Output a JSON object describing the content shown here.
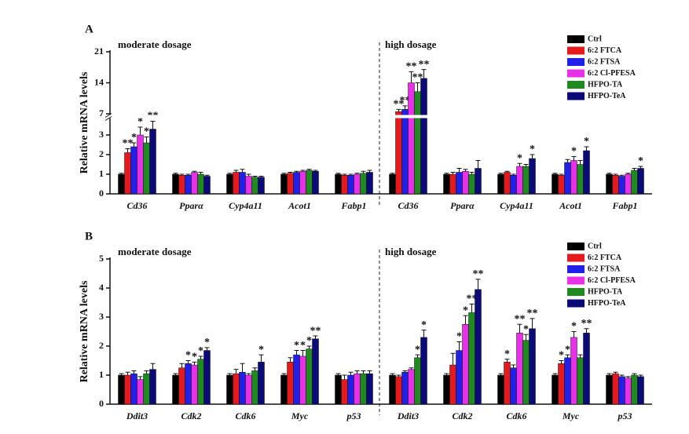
{
  "chart_data": [
    {
      "type": "bar",
      "panel_label": "A",
      "ylabel": "Relative mRNA levels",
      "annotations": [
        "moderate dosage",
        "high dosage"
      ],
      "categories": [
        "Cd36",
        "Pparα",
        "Cyp4a11",
        "Acot1",
        "Fabp1",
        "Cd36",
        "Pparα",
        "Cyp4a11",
        "Acot1",
        "Fabp1"
      ],
      "ylim": [
        0,
        21
      ],
      "yticks": [
        0,
        1,
        2,
        3,
        7,
        14,
        21
      ],
      "y_break": [
        3.8,
        7
      ],
      "series": [
        {
          "name": "Ctrl",
          "color": "#000000",
          "values": [
            1,
            1,
            1,
            1,
            1,
            1,
            1,
            1,
            1,
            1
          ],
          "errors": [
            0.05,
            0.05,
            0.05,
            0.05,
            0.05,
            0.05,
            0.05,
            0.05,
            0.05,
            0.05
          ],
          "stars": [
            null,
            null,
            null,
            null,
            null,
            null,
            null,
            null,
            null,
            null
          ]
        },
        {
          "name": "6:2 FTCA",
          "color": "#e41a1c",
          "values": [
            2.1,
            0.95,
            1.1,
            1.05,
            0.95,
            7.5,
            1.0,
            1.1,
            0.95,
            0.95
          ],
          "errors": [
            0.2,
            0.05,
            0.1,
            0.05,
            0.05,
            0.5,
            0.1,
            0.05,
            0.05,
            0.05
          ],
          "stars": [
            "**",
            null,
            null,
            null,
            null,
            "**",
            null,
            null,
            null,
            null
          ]
        },
        {
          "name": "6:2 FTSA",
          "color": "#2020e8",
          "values": [
            2.4,
            0.95,
            1.1,
            1.1,
            0.95,
            8,
            1.1,
            0.95,
            1.6,
            0.9
          ],
          "errors": [
            0.2,
            0.05,
            0.15,
            0.05,
            0.05,
            0.8,
            0.2,
            0.05,
            0.15,
            0.05
          ],
          "stars": [
            "*",
            null,
            null,
            null,
            null,
            "**",
            null,
            null,
            null,
            null
          ]
        },
        {
          "name": "6:2 Cl-PFESA",
          "color": "#e830e8",
          "values": [
            3.0,
            1.1,
            0.9,
            1.15,
            1.0,
            14,
            1.15,
            1.4,
            1.7,
            1.0
          ],
          "errors": [
            0.4,
            0.05,
            0.1,
            0.05,
            0.05,
            2.5,
            0.1,
            0.15,
            0.2,
            0.05
          ],
          "stars": [
            "*",
            null,
            null,
            null,
            null,
            "**",
            null,
            "*",
            "*",
            null
          ]
        },
        {
          "name": "HFPO-TA",
          "color": "#1f8a1f",
          "values": [
            2.6,
            1.0,
            0.85,
            1.2,
            1.05,
            12,
            1.0,
            1.4,
            1.5,
            1.2
          ],
          "errors": [
            0.3,
            0.1,
            0.05,
            0.05,
            0.1,
            2.0,
            0.1,
            0.1,
            0.2,
            0.1
          ],
          "stars": [
            "*",
            null,
            null,
            null,
            null,
            "**",
            null,
            null,
            null,
            null
          ]
        },
        {
          "name": "HFPO-TeA",
          "color": "#0a0a78",
          "values": [
            3.3,
            0.9,
            0.85,
            1.15,
            1.1,
            15,
            1.3,
            1.8,
            2.2,
            1.3
          ],
          "errors": [
            0.4,
            0.05,
            0.05,
            0.05,
            0.1,
            2.0,
            0.4,
            0.2,
            0.2,
            0.1
          ],
          "stars": [
            "**",
            null,
            null,
            null,
            null,
            "**",
            null,
            "*",
            "*",
            "*"
          ]
        }
      ]
    },
    {
      "type": "bar",
      "panel_label": "B",
      "ylabel": "Relative mRNA levels",
      "annotations": [
        "moderate dosage",
        "high dosage"
      ],
      "categories": [
        "Ddit3",
        "Cdk2",
        "Cdk6",
        "Myc",
        "p53",
        "Ddit3",
        "Cdk2",
        "Cdk6",
        "Myc",
        "p53"
      ],
      "ylim": [
        0,
        5
      ],
      "yticks": [
        0,
        1,
        2,
        3,
        4,
        5
      ],
      "series": [
        {
          "name": "Ctrl",
          "color": "#000000",
          "values": [
            1,
            1,
            1,
            1,
            1,
            1,
            1,
            1,
            1,
            1
          ],
          "errors": [
            0.05,
            0.05,
            0.05,
            0.05,
            0.05,
            0.05,
            0.05,
            0.05,
            0.05,
            0.05
          ],
          "stars": [
            null,
            null,
            null,
            null,
            null,
            null,
            null,
            null,
            null,
            null
          ]
        },
        {
          "name": "6:2 FTCA",
          "color": "#e41a1c",
          "values": [
            1.0,
            1.25,
            1.05,
            1.45,
            0.85,
            0.95,
            1.35,
            1.45,
            1.4,
            1.05
          ],
          "errors": [
            0.1,
            0.15,
            0.15,
            0.15,
            0.15,
            0.05,
            0.4,
            0.1,
            0.1,
            0.05
          ],
          "stars": [
            null,
            null,
            null,
            null,
            null,
            null,
            null,
            "*",
            "*",
            null
          ]
        },
        {
          "name": "6:2 FTSA",
          "color": "#2020e8",
          "values": [
            1.05,
            1.4,
            1.1,
            1.7,
            1.0,
            1.1,
            1.85,
            1.25,
            1.6,
            0.95
          ],
          "errors": [
            0.1,
            0.1,
            0.3,
            0.15,
            0.1,
            0.05,
            0.3,
            0.1,
            0.1,
            0.05
          ],
          "stars": [
            null,
            "*",
            null,
            "*",
            null,
            null,
            "*",
            null,
            "*",
            null
          ]
        },
        {
          "name": "6:2 Cl-PFESA",
          "color": "#e830e8",
          "values": [
            0.85,
            1.35,
            1.0,
            1.65,
            1.05,
            1.2,
            2.75,
            2.45,
            2.3,
            0.9
          ],
          "errors": [
            0.1,
            0.1,
            0.05,
            0.2,
            0.1,
            0.05,
            0.3,
            0.3,
            0.2,
            0.05
          ],
          "stars": [
            null,
            "*",
            null,
            "*",
            null,
            null,
            "*",
            "**",
            "*",
            null
          ]
        },
        {
          "name": "HFPO-TA",
          "color": "#1f8a1f",
          "values": [
            1.05,
            1.55,
            1.15,
            1.9,
            1.05,
            1.6,
            3.15,
            2.2,
            1.6,
            1.0
          ],
          "errors": [
            0.1,
            0.1,
            0.1,
            0.1,
            0.1,
            0.1,
            0.3,
            0.2,
            0.1,
            0.05
          ],
          "stars": [
            null,
            "*",
            null,
            "*",
            null,
            "*",
            "**",
            "*",
            null,
            null
          ]
        },
        {
          "name": "HFPO-TeA",
          "color": "#0a0a78",
          "values": [
            1.2,
            1.85,
            1.45,
            2.25,
            1.05,
            2.3,
            3.95,
            2.6,
            2.45,
            0.95
          ],
          "errors": [
            0.2,
            0.1,
            0.25,
            0.1,
            0.1,
            0.25,
            0.35,
            0.35,
            0.15,
            0.05
          ],
          "stars": [
            null,
            "*",
            "*",
            "**",
            null,
            "*",
            "**",
            "**",
            "**",
            null
          ]
        }
      ]
    }
  ]
}
